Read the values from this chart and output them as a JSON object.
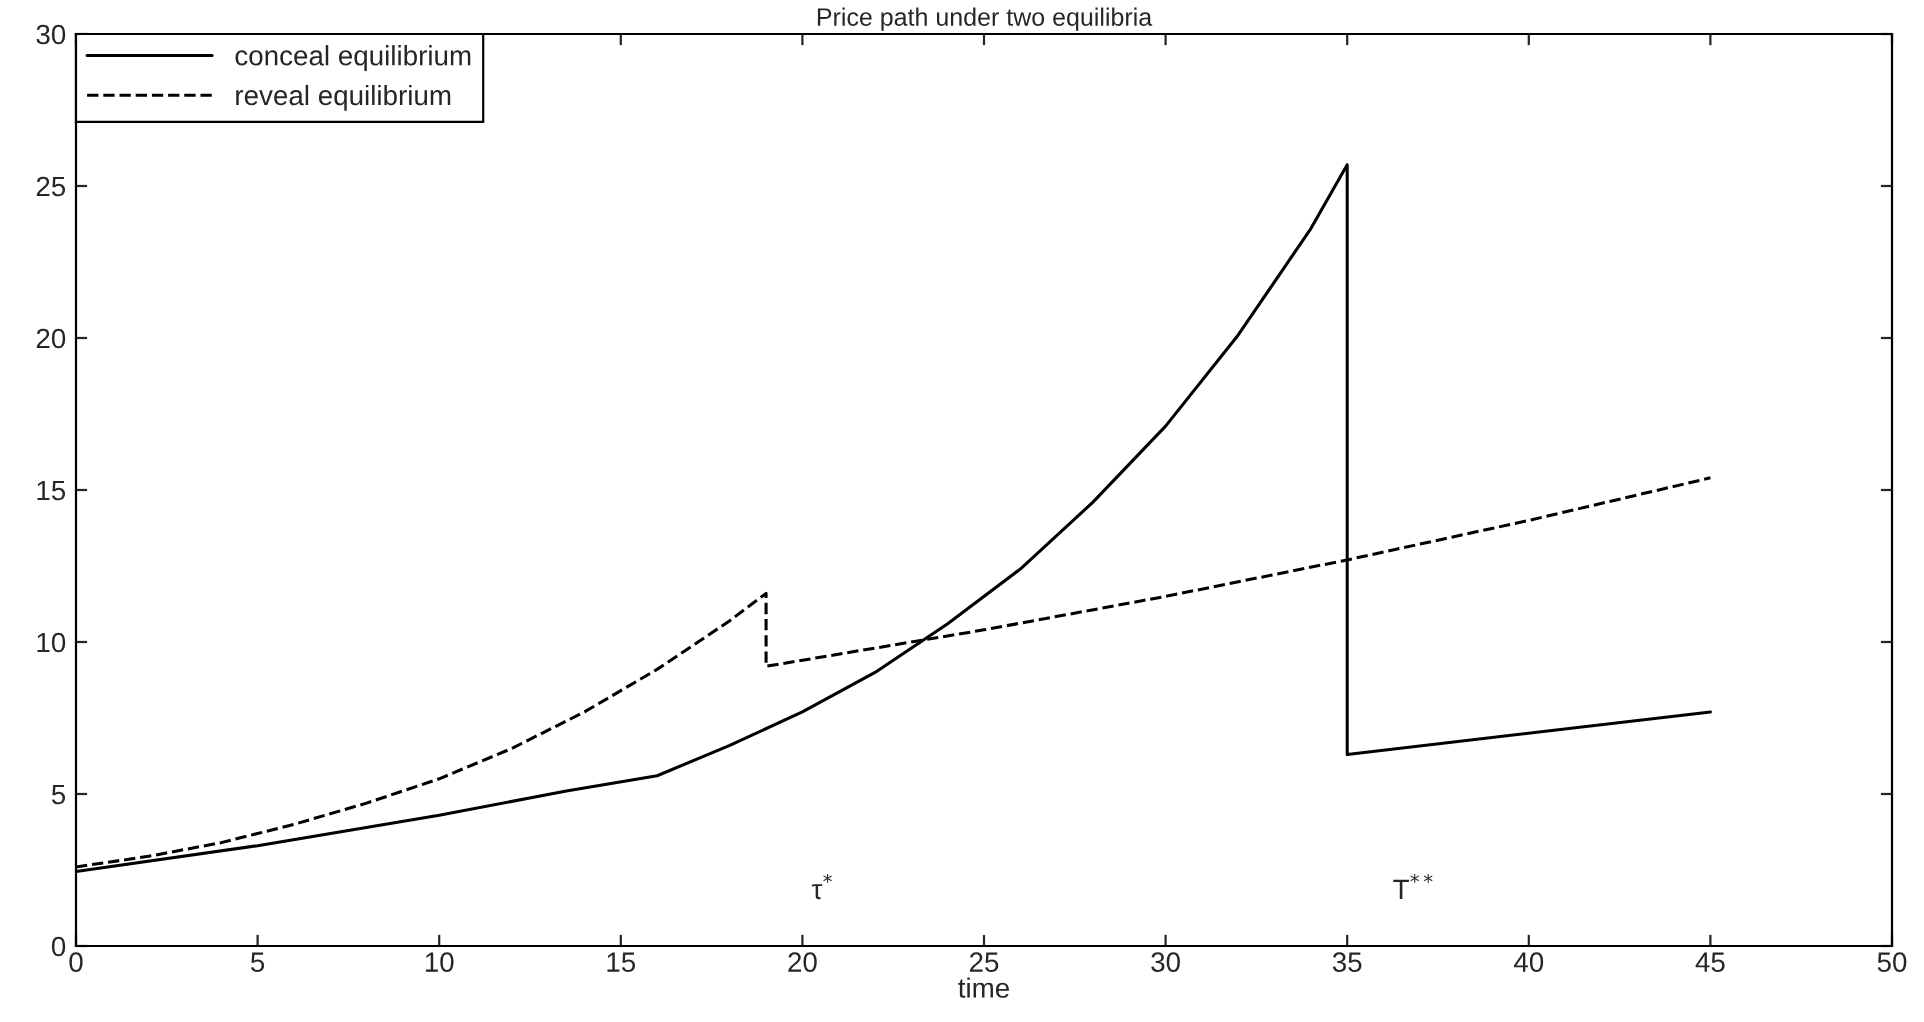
{
  "chart_data": {
    "type": "line",
    "title": "Price path under two equilibria",
    "xlabel": "time",
    "xlim": [
      0,
      50
    ],
    "xticks": [
      0,
      5,
      10,
      15,
      20,
      25,
      30,
      35,
      40,
      45,
      50
    ],
    "ylim": [
      0,
      30
    ],
    "yticks": [
      0,
      5,
      10,
      15,
      20,
      25,
      30
    ],
    "series": [
      {
        "name": "conceal equilibrium",
        "color": "#000000",
        "line_style": "solid",
        "x": [
          0,
          5,
          10,
          13.5,
          16,
          18,
          20,
          22,
          24,
          26,
          28,
          30,
          32,
          34,
          35,
          35,
          45
        ],
        "values": [
          2.45,
          3.3,
          4.3,
          5.1,
          5.6,
          6.6,
          7.7,
          9.0,
          10.6,
          12.4,
          14.6,
          17.1,
          20.1,
          23.6,
          25.7,
          6.3,
          7.7
        ]
      },
      {
        "name": "reveal equilibrium",
        "color": "#000000",
        "line_style": "dashed",
        "x": [
          0,
          2,
          4,
          6,
          8,
          10,
          12,
          14,
          16,
          18,
          19,
          19,
          25,
          30,
          35,
          40,
          45
        ],
        "values": [
          2.6,
          2.95,
          3.4,
          4.0,
          4.7,
          5.5,
          6.5,
          7.7,
          9.1,
          10.7,
          11.6,
          9.2,
          10.4,
          11.5,
          12.7,
          14.0,
          15.4
        ]
      }
    ],
    "annotations": [
      "τ$^{*}$",
      "T$^{**}$"
    ],
    "legend": "top left",
    "grid": false,
    "marker": "none"
  }
}
